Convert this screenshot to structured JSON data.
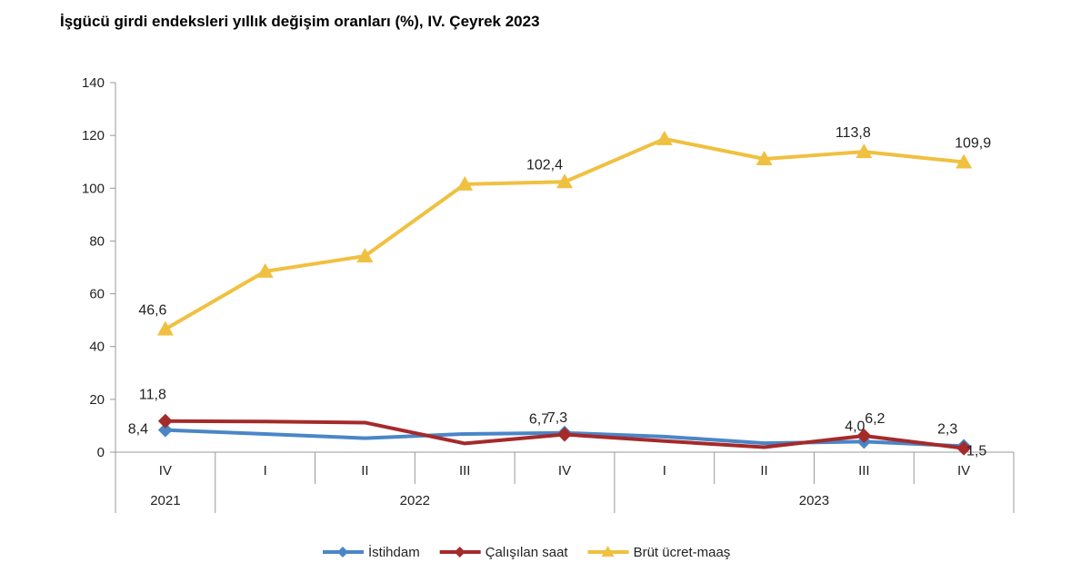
{
  "chart_data": {
    "type": "line",
    "title": "İşgücü girdi endeksleri yıllık değişim oranları (%), IV. Çeyrek 2023",
    "categories": [
      "IV",
      "I",
      "II",
      "III",
      "IV",
      "I",
      "II",
      "III",
      "IV"
    ],
    "years": [
      {
        "label": "2021",
        "span": 1
      },
      {
        "label": "2022",
        "span": 4
      },
      {
        "label": "2023",
        "span": 4
      }
    ],
    "ylim": [
      0,
      140
    ],
    "yticks": [
      0,
      20,
      40,
      60,
      80,
      100,
      120,
      140
    ],
    "grid": false,
    "legend": "bottom",
    "series": [
      {
        "name": "İstihdam",
        "color": "#4a86c8",
        "marker": "diamond",
        "values": [
          8.4,
          6.9,
          5.3,
          6.9,
          7.3,
          5.9,
          3.4,
          4.0,
          2.3
        ],
        "labels": [
          {
            "i": 0,
            "text": "8,4"
          },
          {
            "i": 4,
            "text": "7,3"
          },
          {
            "i": 7,
            "text": "4,0"
          },
          {
            "i": 8,
            "text": "2,3"
          }
        ]
      },
      {
        "name": "Çalışılan saat",
        "color": "#a52a2a",
        "marker": "diamond",
        "values": [
          11.8,
          11.6,
          11.2,
          3.3,
          6.7,
          4.2,
          1.9,
          6.2,
          1.5
        ],
        "labels": [
          {
            "i": 0,
            "text": "11,8"
          },
          {
            "i": 4,
            "text": "6,7"
          },
          {
            "i": 7,
            "text": "6,2"
          },
          {
            "i": 8,
            "text": "1,5"
          }
        ]
      },
      {
        "name": "Brüt ücret-maaş",
        "color": "#f0c040",
        "marker": "triangle",
        "values": [
          46.6,
          68.5,
          74.3,
          101.5,
          102.4,
          118.7,
          111.1,
          113.8,
          109.9
        ],
        "labels": [
          {
            "i": 0,
            "text": "46,6"
          },
          {
            "i": 4,
            "text": "102,4"
          },
          {
            "i": 7,
            "text": "113,8"
          },
          {
            "i": 8,
            "text": "109,9"
          }
        ]
      }
    ]
  }
}
